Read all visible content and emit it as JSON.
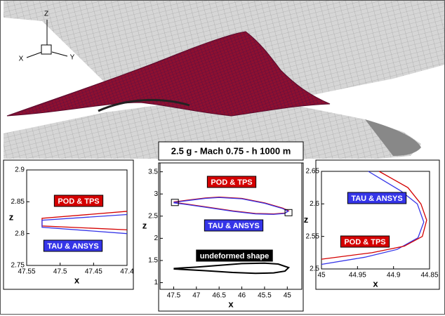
{
  "triad": {
    "z": "Z",
    "x": "X",
    "y": "Y"
  },
  "chart_data": [
    {
      "type": "line",
      "xlabel": "x",
      "ylabel": "z",
      "xlim": [
        47.55,
        47.4
      ],
      "ylim": [
        2.75,
        2.9
      ],
      "xticks": [
        47.55,
        47.5,
        47.45,
        47.4
      ],
      "yticks": [
        2.75,
        2.8,
        2.85,
        2.9
      ],
      "series": [
        {
          "name": "POD & TPS",
          "color": "#d40000",
          "x": [
            47.4,
            47.527,
            47.527,
            47.4
          ],
          "values": [
            2.835,
            2.824,
            2.812,
            2.806
          ]
        },
        {
          "name": "TAU & ANSYS",
          "color": "#3535e8",
          "x": [
            47.4,
            47.527,
            47.527,
            47.4
          ],
          "values": [
            2.83,
            2.821,
            2.81,
            2.8
          ]
        }
      ]
    },
    {
      "type": "line",
      "title": "2.5 g - Mach 0.75 - h 1000 m",
      "xlabel": "x",
      "ylabel": "z",
      "xlim": [
        47.8,
        44.68
      ],
      "ylim": [
        0.85,
        3.7
      ],
      "xticks": [
        47.5,
        47,
        46.5,
        46,
        45.5,
        45
      ],
      "yticks": [
        1,
        1.5,
        2,
        2.5,
        3,
        3.5
      ],
      "series": [
        {
          "name": "POD & TPS",
          "color": "#d40000",
          "x": [
            47.5,
            47.2,
            46.8,
            46.5,
            46,
            45.5,
            45.1,
            44.97,
            45.05,
            45.3,
            45.7,
            46.2,
            46.8,
            47.2,
            47.5
          ],
          "values": [
            2.82,
            2.86,
            2.91,
            2.93,
            2.9,
            2.8,
            2.68,
            2.62,
            2.57,
            2.55,
            2.56,
            2.62,
            2.71,
            2.77,
            2.81
          ]
        },
        {
          "name": "TAU & ANSYS",
          "color": "#3535e8",
          "x": [
            47.5,
            47.2,
            46.8,
            46.5,
            46,
            45.5,
            45.1,
            44.98,
            45.06,
            45.3,
            45.7,
            46.2,
            46.8,
            47.2,
            47.5
          ],
          "values": [
            2.81,
            2.85,
            2.9,
            2.92,
            2.89,
            2.79,
            2.67,
            2.61,
            2.56,
            2.54,
            2.55,
            2.61,
            2.7,
            2.76,
            2.8
          ]
        },
        {
          "name": "undeformed shape",
          "color": "#000000",
          "x": [
            47.5,
            47,
            46.5,
            46,
            45.5,
            45.2,
            44.97,
            45.05,
            45.3,
            45.7,
            46.2,
            46.8,
            47.5
          ],
          "values": [
            1.32,
            1.35,
            1.39,
            1.43,
            1.44,
            1.42,
            1.34,
            1.26,
            1.22,
            1.21,
            1.23,
            1.27,
            1.31
          ]
        }
      ]
    },
    {
      "type": "line",
      "xlabel": "x",
      "ylabel": "z",
      "xlim": [
        45,
        44.85
      ],
      "ylim": [
        2.5,
        2.65
      ],
      "xticks": [
        45,
        44.95,
        44.9,
        44.85
      ],
      "yticks": [
        2.5,
        2.55,
        2.6,
        2.65
      ],
      "series": [
        {
          "name": "TAU & ANSYS",
          "color": "#3535e8",
          "x": [
            44.935,
            44.89,
            44.867,
            44.858,
            44.866,
            44.895,
            44.94,
            45
          ],
          "values": [
            2.65,
            2.62,
            2.6,
            2.572,
            2.548,
            2.53,
            2.518,
            2.507
          ]
        },
        {
          "name": "POD & TPS",
          "color": "#d40000",
          "x": [
            44.92,
            44.88,
            44.862,
            44.854,
            44.86,
            44.885,
            44.93,
            45
          ],
          "values": [
            2.65,
            2.625,
            2.6,
            2.575,
            2.55,
            2.535,
            2.525,
            2.515
          ]
        }
      ]
    }
  ]
}
